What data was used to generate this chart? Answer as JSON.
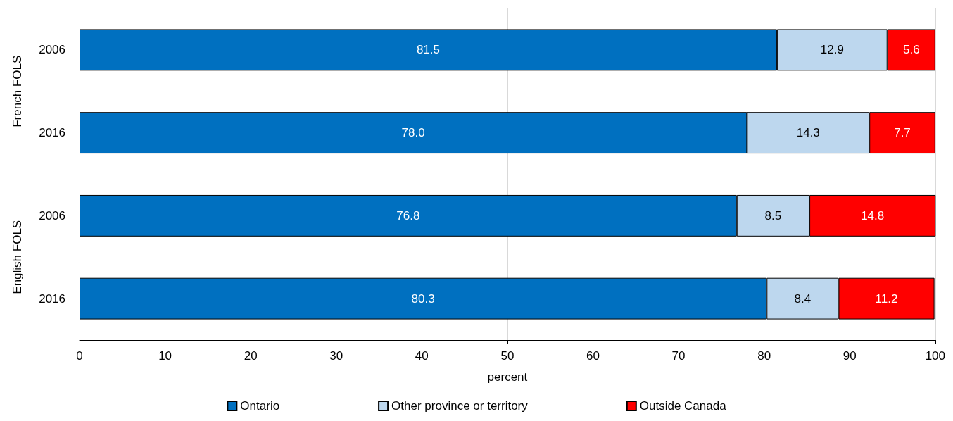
{
  "chart_data": {
    "type": "bar",
    "orientation": "horizontal",
    "stacked": true,
    "xlabel": "percent",
    "categories": [
      "2006",
      "2016",
      "2006",
      "2016"
    ],
    "annotations": [
      "French FOLS",
      "English FOLS"
    ],
    "series": [
      {
        "name": "Ontario",
        "color": "#0070c0",
        "values": [
          81.5,
          78.0,
          76.8,
          80.3
        ],
        "value_labels": [
          "81.5",
          "78.0",
          "76.8",
          "80.3"
        ]
      },
      {
        "name": "Other province or territory",
        "color": "#bdd7ee",
        "values": [
          12.9,
          14.3,
          8.5,
          8.4
        ],
        "value_labels": [
          "12.9",
          "14.3",
          "8.5",
          "8.4"
        ]
      },
      {
        "name": "Outside Canada",
        "color": "#ff0000",
        "values": [
          5.6,
          7.7,
          14.8,
          11.2
        ],
        "value_labels": [
          "5.6",
          "7.7",
          "14.8",
          "11.2"
        ]
      }
    ],
    "xlim": [
      0,
      100
    ],
    "xticks": [
      0,
      10,
      20,
      30,
      40,
      50,
      60,
      70,
      80,
      90,
      100
    ],
    "grid": "x",
    "legend": "bottom"
  }
}
